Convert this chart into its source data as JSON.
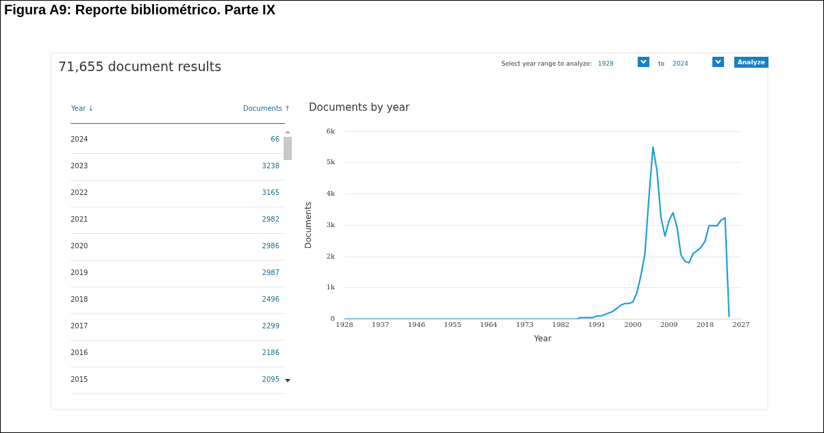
{
  "chart_data": {
    "type": "line",
    "title": "Figura A9: Reporte bibliométrico. Parte IX",
    "subtitle": "Documents by year",
    "xlabel": "Year",
    "ylabel": "Documents",
    "annotations": [
      "71,655 document results",
      "Select year range to analyze:",
      "1928",
      "to",
      "2024",
      "Analyze",
      "Year ↓",
      "Documents ↑",
      "2024",
      "66",
      "2023",
      "3238",
      "2022",
      "3165",
      "2021",
      "2982",
      "2020",
      "2986",
      "2019",
      "2987",
      "2018",
      "2496",
      "2017",
      "2299",
      "2016",
      "2186",
      "2015",
      "2095"
    ],
    "xlim": [
      1928,
      2027
    ],
    "xticks": [
      1928,
      1937,
      1946,
      1955,
      1964,
      1973,
      1982,
      1991,
      2000,
      2009,
      2018,
      2027
    ],
    "ylim": [
      0,
      6000
    ],
    "yticks": [
      {
        "value": 0,
        "label": "0"
      },
      {
        "value": 1000,
        "label": "1k"
      },
      {
        "value": 2000,
        "label": "2k"
      },
      {
        "value": 3000,
        "label": "3k"
      },
      {
        "value": 4000,
        "label": "4k"
      },
      {
        "value": 5000,
        "label": "5k"
      },
      {
        "value": 6000,
        "label": "6k"
      }
    ],
    "grid": "y",
    "series": [
      {
        "color": "#1a9fd4",
        "x": [
          1928,
          1950,
          1970,
          1980,
          1985,
          1986,
          1987,
          1988,
          1989,
          1990,
          1991,
          1992,
          1993,
          1994,
          1995,
          1996,
          1997,
          1998,
          1999,
          2000,
          2001,
          2002,
          2003,
          2004,
          2005,
          2006,
          2007,
          2008,
          2009,
          2010,
          2011,
          2012,
          2013,
          2014,
          2015,
          2016,
          2017,
          2018,
          2019,
          2020,
          2021,
          2022,
          2023,
          2024
        ],
        "values": [
          0,
          0,
          0,
          0,
          0,
          0,
          50,
          50,
          50,
          50,
          100,
          100,
          150,
          200,
          250,
          350,
          450,
          500,
          500,
          550,
          850,
          1400,
          2100,
          3900,
          5500,
          4750,
          3250,
          2650,
          3150,
          3400,
          2950,
          2050,
          1850,
          1800,
          2095,
          2186,
          2299,
          2496,
          2987,
          2986,
          2982,
          3165,
          3238,
          66
        ]
      }
    ]
  }
}
